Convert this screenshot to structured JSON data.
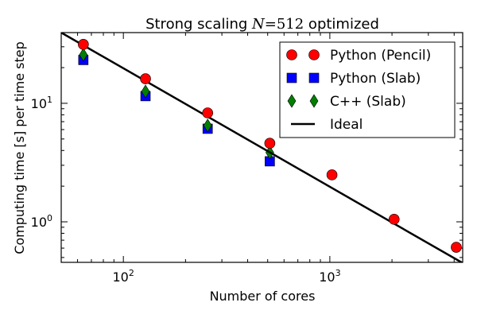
{
  "chart_data": {
    "type": "scatter",
    "title_prefix": "Strong scaling ",
    "title_math_var": "N",
    "title_math_rest": "=512",
    "title_suffix": " optimized",
    "title": "Strong scaling N=512 optimized",
    "xlabel": "Number of cores",
    "ylabel": "Computing time [s] per time step",
    "xscale": "log",
    "yscale": "log",
    "xlim": [
      50,
      4400
    ],
    "ylim": [
      0.455,
      39.5
    ],
    "x_ticks": [
      {
        "base": "10",
        "exp": "2",
        "value": 100
      },
      {
        "base": "10",
        "exp": "3",
        "value": 1000
      }
    ],
    "y_ticks": [
      {
        "base": "10",
        "exp": "0",
        "value": 1
      },
      {
        "base": "10",
        "exp": "1",
        "value": 10
      }
    ],
    "legend_position": "top-right",
    "series": [
      {
        "name": "Python (Pencil)",
        "marker": "circle",
        "color": "#ff0000",
        "x": [
          64,
          128,
          256,
          512,
          1024,
          2048,
          4096
        ],
        "y": [
          31.4,
          16.1,
          8.3,
          4.6,
          2.49,
          1.05,
          0.61
        ]
      },
      {
        "name": "Python (Slab)",
        "marker": "square",
        "color": "#0000ff",
        "x": [
          64,
          128,
          256,
          512
        ],
        "y": [
          23.2,
          11.5,
          6.1,
          3.24
        ]
      },
      {
        "name": "C++ (Slab)",
        "marker": "diamond",
        "color": "#007f00",
        "x": [
          64,
          128,
          256,
          512
        ],
        "y": [
          25.7,
          12.6,
          6.5,
          3.84
        ]
      },
      {
        "name": "Ideal",
        "marker": "line",
        "color": "#000000",
        "x": [
          50,
          4400
        ],
        "y": [
          39.5,
          0.449
        ]
      }
    ]
  }
}
